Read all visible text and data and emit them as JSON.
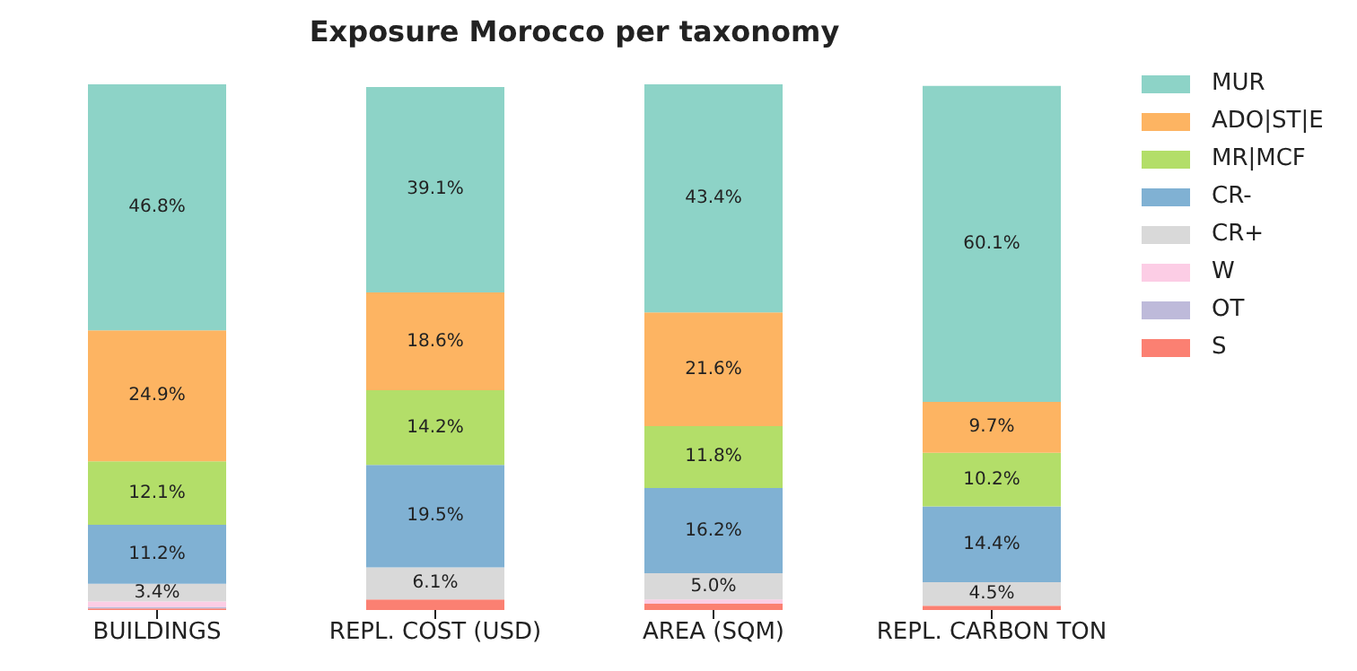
{
  "chart_data": {
    "type": "bar",
    "title": "Exposure Morocco per taxonomy",
    "stacked": true,
    "categories": [
      "BUILDINGS",
      "REPL. COST (USD)",
      "AREA (SQM)",
      "REPL. CARBON TON"
    ],
    "ylim": [
      0,
      100
    ],
    "tick_labels": "x",
    "legend": "top right",
    "grid": false,
    "series": [
      {
        "name": "S",
        "color": "#fb8072",
        "values": [
          0.3,
          2.0,
          1.2,
          0.8
        ],
        "value_labels": [
          null,
          null,
          null,
          null
        ]
      },
      {
        "name": "OT",
        "color": "#bebada",
        "values": [
          0.3,
          0,
          0,
          0
        ],
        "value_labels": [
          null,
          null,
          null,
          null
        ]
      },
      {
        "name": "W",
        "color": "#fccde5",
        "values": [
          1.0,
          null,
          0.8,
          null
        ],
        "value_labels": [
          null,
          null,
          null,
          null
        ]
      },
      {
        "name": "CR+",
        "color": "#d9d9d9",
        "values": [
          3.4,
          6.1,
          5.0,
          4.5
        ],
        "value_labels": [
          "3.4%",
          "6.1%",
          "5.0%",
          "4.5%"
        ]
      },
      {
        "name": "CR-",
        "color": "#80b1d3",
        "values": [
          11.2,
          19.5,
          16.2,
          14.4
        ],
        "value_labels": [
          "11.2%",
          "19.5%",
          "16.2%",
          "14.4%"
        ]
      },
      {
        "name": "MR|MCF",
        "color": "#b3de69",
        "values": [
          12.1,
          14.2,
          11.8,
          10.2
        ],
        "value_labels": [
          "12.1%",
          "14.2%",
          "11.8%",
          "10.2%"
        ]
      },
      {
        "name": "ADO|ST|E",
        "color": "#fdb462",
        "values": [
          24.9,
          18.6,
          21.6,
          9.7
        ],
        "value_labels": [
          "24.9%",
          "18.6%",
          "21.6%",
          "9.7%"
        ]
      },
      {
        "name": "MUR",
        "color": "#8dd3c7",
        "values": [
          46.8,
          39.1,
          43.4,
          60.1
        ],
        "value_labels": [
          "46.8%",
          "39.1%",
          "43.4%",
          "60.1%"
        ]
      }
    ]
  }
}
